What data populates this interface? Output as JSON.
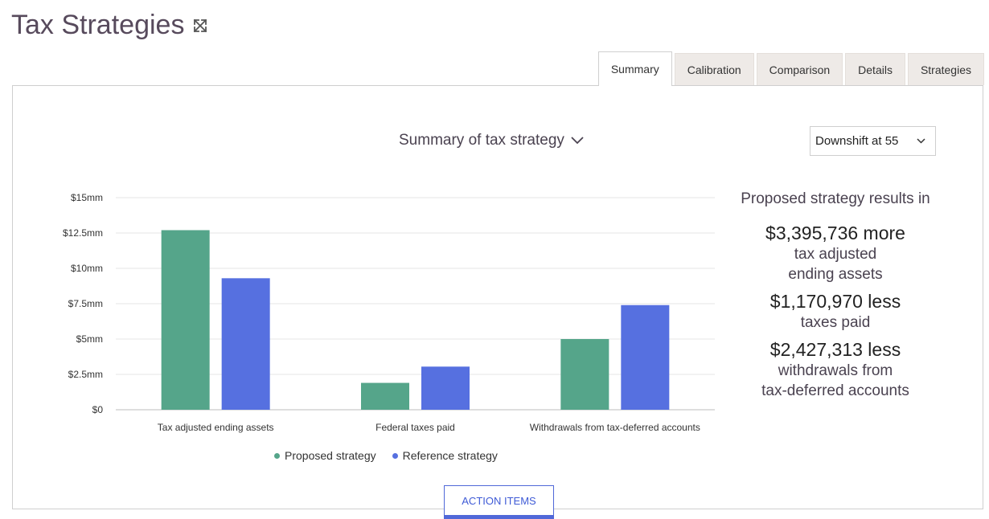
{
  "page": {
    "title": "Tax Strategies"
  },
  "tabs": [
    {
      "label": "Summary",
      "active": true
    },
    {
      "label": "Calibration",
      "active": false
    },
    {
      "label": "Comparison",
      "active": false
    },
    {
      "label": "Details",
      "active": false
    },
    {
      "label": "Strategies",
      "active": false
    }
  ],
  "summary": {
    "heading": "Summary of tax strategy",
    "strategy_select": "Downshift at 55"
  },
  "results": {
    "heading": "Proposed strategy results in",
    "items": [
      {
        "value": "$3,395,736 more",
        "desc_line1": "tax adjusted",
        "desc_line2": "ending assets"
      },
      {
        "value": "$1,170,970 less",
        "desc_line1": "taxes paid",
        "desc_line2": ""
      },
      {
        "value": "$2,427,313 less",
        "desc_line1": "withdrawals from",
        "desc_line2": "tax-deferred accounts"
      }
    ]
  },
  "action_button": "ACTION ITEMS",
  "colors": {
    "proposed": "#55a58a",
    "reference": "#5670e0"
  },
  "chart_data": {
    "type": "bar",
    "categories": [
      "Tax adjusted ending assets",
      "Federal taxes paid",
      "Withdrawals from tax-deferred accounts"
    ],
    "series": [
      {
        "name": "Proposed strategy",
        "values": [
          12.7,
          1.9,
          5.0
        ]
      },
      {
        "name": "Reference strategy",
        "values": [
          9.3,
          3.05,
          7.4
        ]
      }
    ],
    "yticks": [
      0,
      2.5,
      5,
      7.5,
      10,
      12.5,
      15
    ],
    "ytick_labels": [
      "$0",
      "$2.5mm",
      "$5mm",
      "$7.5mm",
      "$10mm",
      "$12.5mm",
      "$15mm"
    ],
    "ylim": [
      0,
      15
    ],
    "grid": true,
    "legend_position": "bottom"
  }
}
